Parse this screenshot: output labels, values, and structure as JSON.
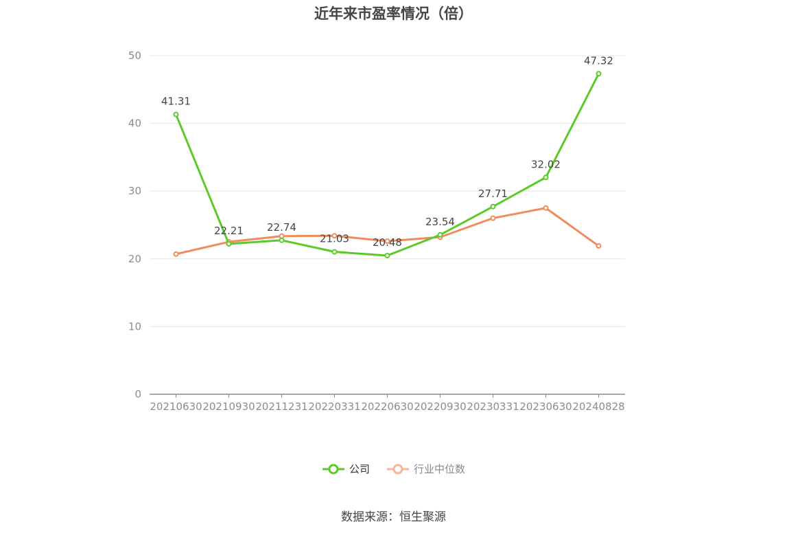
{
  "chart_data": {
    "type": "line",
    "title": "近年来市盈率情况（倍）",
    "categories": [
      "20210630",
      "20210930",
      "20211231",
      "20220331",
      "20220630",
      "20220930",
      "20230331",
      "20230630",
      "20240828"
    ],
    "series": [
      {
        "name": "公司",
        "color": "#5cc92a",
        "values": [
          41.31,
          22.21,
          22.74,
          21.03,
          20.48,
          23.54,
          27.71,
          32.02,
          47.32
        ],
        "labels": [
          "41.31",
          "22.21",
          "22.74",
          "21.03",
          "20.48",
          "23.54",
          "27.71",
          "32.02",
          "47.32"
        ]
      },
      {
        "name": "行业中位数",
        "color": "#f28b5b",
        "values": [
          20.7,
          22.5,
          23.35,
          23.4,
          22.6,
          23.2,
          26.0,
          27.5,
          21.9
        ]
      }
    ],
    "ylim": [
      0,
      50
    ],
    "yticks": [
      0,
      10,
      20,
      30,
      40,
      50
    ],
    "grid": true,
    "legend_position": "bottom"
  },
  "legend": {
    "company": "公司",
    "industry": "行业中位数"
  },
  "source": "数据来源：恒生聚源"
}
